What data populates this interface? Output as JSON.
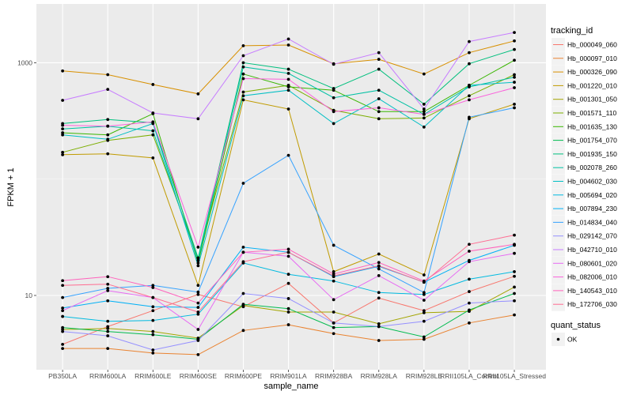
{
  "chart_data": {
    "type": "line",
    "title": "",
    "xlabel": "sample_name",
    "ylabel": "FPKM + 1",
    "yscale": "log10",
    "ylim": [
      2.3,
      3200
    ],
    "yticks": [
      {
        "value": 1000,
        "label": "1000"
      },
      {
        "value": 10,
        "label": "10"
      }
    ],
    "minor_gridlines": [
      100,
      1
    ],
    "grid": true,
    "legend_position": "right",
    "categories": [
      "PB350LA",
      "RRIM600LA",
      "RRIM600LE",
      "RRIM600SE",
      "RRIM600PE",
      "RRIM901LA",
      "RRIM928BA",
      "RRIM928LA",
      "RRIM928LE",
      "RRII105LA_Control",
      "RRII105LA_Stressed"
    ],
    "series": [
      {
        "name": "Hb_000049_060",
        "color": "#F8766D",
        "values": [
          3.8,
          5.4,
          7.4,
          10.2,
          8.0,
          12.7,
          5.8,
          9.5,
          7.4,
          10.8,
          14.6
        ]
      },
      {
        "name": "Hb_000097_010",
        "color": "#EA8331",
        "values": [
          3.5,
          3.5,
          3.2,
          3.1,
          5.0,
          5.6,
          4.7,
          4.1,
          4.2,
          5.8,
          6.8
        ]
      },
      {
        "name": "Hb_000326_090",
        "color": "#D89000",
        "values": [
          850,
          790,
          650,
          540,
          1400,
          1420,
          980,
          1070,
          800,
          1220,
          1540
        ]
      },
      {
        "name": "Hb_001220_010",
        "color": "#C09B00",
        "values": [
          162,
          165,
          152,
          12.2,
          480,
          400,
          16.0,
          22.7,
          15.0,
          330,
          440
        ]
      },
      {
        "name": "Hb_001301_050",
        "color": "#A3A500",
        "values": [
          5.1,
          5.2,
          4.9,
          4.3,
          8.2,
          7.2,
          7.2,
          5.7,
          7.1,
          7.3,
          11.8
        ]
      },
      {
        "name": "Hb_001571_110",
        "color": "#7CAE00",
        "values": [
          170,
          215,
          240,
          21,
          560,
          640,
          390,
          330,
          335,
          520,
          790
        ]
      },
      {
        "name": "Hb_001635_130",
        "color": "#39B600",
        "values": [
          250,
          240,
          365,
          19,
          800,
          620,
          580,
          380,
          380,
          640,
          1050
        ]
      },
      {
        "name": "Hb_001754_070",
        "color": "#00BB4E",
        "values": [
          5.3,
          4.9,
          4.6,
          4.2,
          8.4,
          7.7,
          5.3,
          5.4,
          4.4,
          7.5,
          10.4
        ]
      },
      {
        "name": "Hb_001935_150",
        "color": "#00BF7D",
        "values": [
          300,
          325,
          305,
          21,
          1000,
          880,
          600,
          880,
          440,
          980,
          1300
        ]
      },
      {
        "name": "Hb_002078_260",
        "color": "#00C1A3",
        "values": [
          270,
          285,
          260,
          20,
          920,
          810,
          500,
          580,
          360,
          620,
          750
        ]
      },
      {
        "name": "Hb_004602_030",
        "color": "#00BFC4",
        "values": [
          240,
          220,
          300,
          18,
          520,
          580,
          300,
          490,
          280,
          640,
          680
        ]
      },
      {
        "name": "Hb_005694_020",
        "color": "#00BAE0",
        "values": [
          6.6,
          6.0,
          6.1,
          6.9,
          19,
          15.2,
          13.3,
          10.6,
          10.2,
          13.8,
          16.0
        ]
      },
      {
        "name": "Hb_007894_230",
        "color": "#00B0F6",
        "values": [
          7.8,
          9.0,
          8.0,
          7.9,
          26,
          23.5,
          14.5,
          17.8,
          13.0,
          20,
          27
        ]
      },
      {
        "name": "Hb_014834_040",
        "color": "#35A2FF",
        "values": [
          9.6,
          11.5,
          12.2,
          10.7,
          92,
          160,
          27,
          16.9,
          10.6,
          340,
          410
        ]
      },
      {
        "name": "Hb_029142_070",
        "color": "#9590FF",
        "values": [
          4.9,
          4.5,
          3.4,
          4.1,
          10.4,
          9.4,
          5.8,
          5.4,
          6.0,
          8.6,
          9.0
        ]
      },
      {
        "name": "Hb_042710_010",
        "color": "#C77CFF",
        "values": [
          475,
          590,
          370,
          330,
          1150,
          1600,
          970,
          1220,
          400,
          1520,
          1820
        ]
      },
      {
        "name": "Hb_080601_020",
        "color": "#E76BF3",
        "values": [
          7.4,
          11.0,
          9.6,
          5.1,
          23.5,
          21.7,
          9.2,
          14.8,
          9.1,
          19.5,
          23
        ]
      },
      {
        "name": "Hb_082006_010",
        "color": "#FA62DB",
        "values": [
          290,
          285,
          310,
          26,
          730,
          720,
          380,
          410,
          360,
          480,
          610
        ]
      },
      {
        "name": "Hb_140543_010",
        "color": "#FF62BC",
        "values": [
          13.4,
          14.5,
          11.7,
          8.6,
          23.5,
          25,
          15.3,
          19.2,
          13.3,
          24,
          27.5
        ]
      },
      {
        "name": "Hb_172706_030",
        "color": "#FF6C91",
        "values": [
          12.2,
          12.5,
          9.6,
          7.2,
          19.5,
          23.5,
          14.7,
          18.0,
          13.0,
          27.5,
          33
        ]
      }
    ],
    "legends": [
      {
        "title": "tracking_id"
      },
      {
        "title": "quant_status",
        "entries": [
          {
            "label": "OK",
            "marker": "point",
            "color": "#000000"
          }
        ]
      }
    ]
  }
}
